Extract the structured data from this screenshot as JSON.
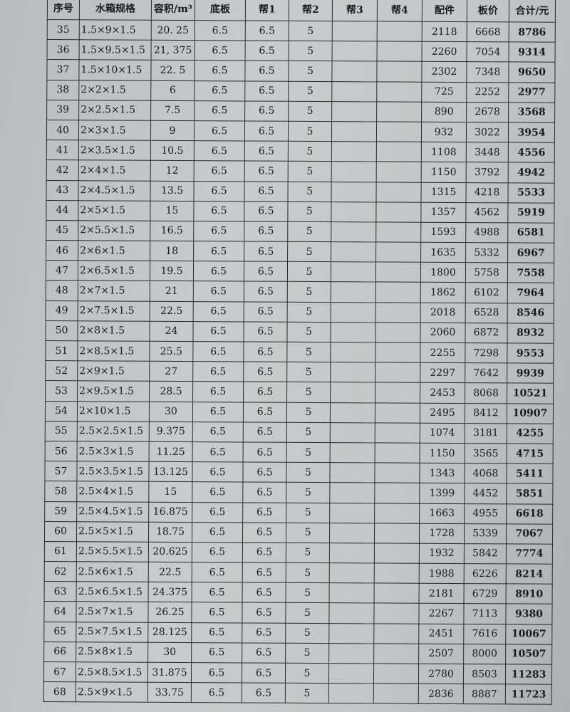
{
  "headers": [
    "序号",
    "水箱规格",
    "容积/m³",
    "底板",
    "帮1",
    "帮2",
    "帮3",
    "帮4",
    "配件",
    "板价",
    "合计/元"
  ],
  "rows": [
    [
      "35",
      "1.5×9×1.5",
      "20. 25",
      "6.5",
      "6.5",
      "5",
      "",
      "",
      "2118",
      "6668",
      "8786"
    ],
    [
      "36",
      "1.5×9.5×1.5",
      "21, 375",
      "6.5",
      "6.5",
      "5",
      "",
      "",
      "2260",
      "7054",
      "9314"
    ],
    [
      "37",
      "1.5×10×1.5",
      "22. 5",
      "6.5",
      "6.5",
      "5",
      "",
      "",
      "2302",
      "7348",
      "9650"
    ],
    [
      "38",
      "2×2×1.5",
      "6",
      "6.5",
      "6.5",
      "5",
      "",
      "",
      "725",
      "2252",
      "2977"
    ],
    [
      "39",
      "2×2.5×1.5",
      "7.5",
      "6.5",
      "6.5",
      "5",
      "",
      "",
      "890",
      "2678",
      "3568"
    ],
    [
      "40",
      "2×3×1.5",
      "9",
      "6.5",
      "6.5",
      "5",
      "",
      "",
      "932",
      "3022",
      "3954"
    ],
    [
      "41",
      "2×3.5×1.5",
      "10.5",
      "6.5",
      "6.5",
      "5",
      "",
      "",
      "1108",
      "3448",
      "4556"
    ],
    [
      "42",
      "2×4×1.5",
      "12",
      "6.5",
      "6.5",
      "5",
      "",
      "",
      "1150",
      "3792",
      "4942"
    ],
    [
      "43",
      "2×4.5×1.5",
      "13.5",
      "6.5",
      "6.5",
      "5",
      "",
      "",
      "1315",
      "4218",
      "5533"
    ],
    [
      "44",
      "2×5×1.5",
      "15",
      "6.5",
      "6.5",
      "5",
      "",
      "",
      "1357",
      "4562",
      "5919"
    ],
    [
      "45",
      "2×5.5×1.5",
      "16.5",
      "6.5",
      "6.5",
      "5",
      "",
      "",
      "1593",
      "4988",
      "6581"
    ],
    [
      "46",
      "2×6×1.5",
      "18",
      "6.5",
      "6.5",
      "5",
      "",
      "",
      "1635",
      "5332",
      "6967"
    ],
    [
      "47",
      "2×6.5×1.5",
      "19.5",
      "6.5",
      "6.5",
      "5",
      "",
      "",
      "1800",
      "5758",
      "7558"
    ],
    [
      "48",
      "2×7×1.5",
      "21",
      "6.5",
      "6.5",
      "5",
      "",
      "",
      "1862",
      "6102",
      "7964"
    ],
    [
      "49",
      "2×7.5×1.5",
      "22.5",
      "6.5",
      "6.5",
      "5",
      "",
      "",
      "2018",
      "6528",
      "8546"
    ],
    [
      "50",
      "2×8×1.5",
      "24",
      "6.5",
      "6.5",
      "5",
      "",
      "",
      "2060",
      "6872",
      "8932"
    ],
    [
      "51",
      "2×8.5×1.5",
      "25.5",
      "6.5",
      "6.5",
      "5",
      "",
      "",
      "2255",
      "7298",
      "9553"
    ],
    [
      "52",
      "2×9×1.5",
      "27",
      "6.5",
      "6.5",
      "5",
      "",
      "",
      "2297",
      "7642",
      "9939"
    ],
    [
      "53",
      "2×9.5×1.5",
      "28.5",
      "6.5",
      "6.5",
      "5",
      "",
      "",
      "2453",
      "8068",
      "10521"
    ],
    [
      "54",
      "2×10×1.5",
      "30",
      "6.5",
      "6.5",
      "5",
      "",
      "",
      "2495",
      "8412",
      "10907"
    ],
    [
      "55",
      "2.5×2.5×1.5",
      "9.375",
      "6.5",
      "6.5",
      "5",
      "",
      "",
      "1074",
      "3181",
      "4255"
    ],
    [
      "56",
      "2.5×3×1.5",
      "11.25",
      "6.5",
      "6.5",
      "5",
      "",
      "",
      "1150",
      "3565",
      "4715"
    ],
    [
      "57",
      "2.5×3.5×1.5",
      "13.125",
      "6.5",
      "6.5",
      "5",
      "",
      "",
      "1343",
      "4068",
      "5411"
    ],
    [
      "58",
      "2.5×4×1.5",
      "15",
      "6.5",
      "6.5",
      "5",
      "",
      "",
      "1399",
      "4452",
      "5851"
    ],
    [
      "59",
      "2.5×4.5×1.5",
      "16.875",
      "6.5",
      "6.5",
      "5",
      "",
      "",
      "1663",
      "4955",
      "6618"
    ],
    [
      "60",
      "2.5×5×1.5",
      "18.75",
      "6.5",
      "6.5",
      "5",
      "",
      "",
      "1728",
      "5339",
      "7067"
    ],
    [
      "61",
      "2.5×5.5×1.5",
      "20.625",
      "6.5",
      "6.5",
      "5",
      "",
      "",
      "1932",
      "5842",
      "7774"
    ],
    [
      "62",
      "2.5×6×1.5",
      "22.5",
      "6.5",
      "6.5",
      "5",
      "",
      "",
      "1988",
      "6226",
      "8214"
    ],
    [
      "63",
      "2.5×6.5×1.5",
      "24.375",
      "6.5",
      "6.5",
      "5",
      "",
      "",
      "2181",
      "6729",
      "8910"
    ],
    [
      "64",
      "2.5×7×1.5",
      "26.25",
      "6.5",
      "6.5",
      "5",
      "",
      "",
      "2267",
      "7113",
      "9380"
    ],
    [
      "65",
      "2.5×7.5×1.5",
      "28.125",
      "6.5",
      "6.5",
      "5",
      "",
      "",
      "2451",
      "7616",
      "10067"
    ],
    [
      "66",
      "2.5×8×1.5",
      "30",
      "6.5",
      "6.5",
      "5",
      "",
      "",
      "2507",
      "8000",
      "10507"
    ],
    [
      "67",
      "2.5×8.5×1.5",
      "31.875",
      "6.5",
      "6.5",
      "5",
      "",
      "",
      "2780",
      "8503",
      "11283"
    ],
    [
      "68",
      "2.5×9×1.5",
      "33.75",
      "6.5",
      "6.5",
      "5",
      "",
      "",
      "2836",
      "8887",
      "11723"
    ]
  ]
}
